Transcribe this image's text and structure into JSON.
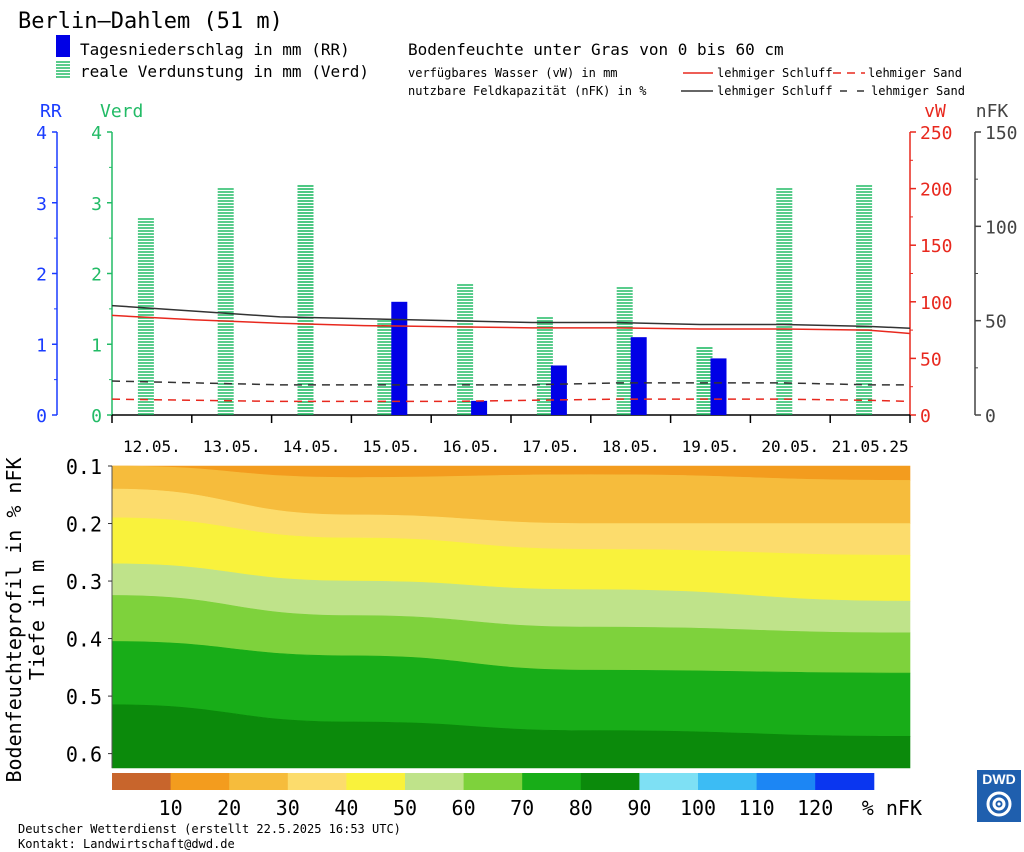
{
  "title": "Berlin—Dahlem (51 m)",
  "legend": {
    "rr": "Tagesniederschlag in mm (RR)",
    "verd": "reale Verdunstung in mm (Verd)",
    "soil_title": "Bodenfeuchte unter Gras von 0 bis 60 cm",
    "vw_label": "verfügbares Wasser (vW) in mm",
    "nfk_label": "nutzbare Feldkapazität (nFK) in %",
    "schluff_red": "lehmiger Schluff",
    "sand_red": "lehmiger Sand",
    "schluff_black": "lehmiger Schluff",
    "sand_black": "lehmiger Sand"
  },
  "colors": {
    "rr": "#0000e6",
    "verd": "#22bb66",
    "vw": "#e8281e",
    "nfk": "#333333",
    "ticks_rr": "#1a3cff",
    "ticks_verd": "#22bb66"
  },
  "chart_data": [
    {
      "type": "bar",
      "categories": [
        "12.05.",
        "13.05.",
        "14.05.",
        "15.05.",
        "16.05.",
        "17.05.",
        "18.05.",
        "19.05.",
        "20.05.",
        "21.05.25"
      ],
      "axes": {
        "rr": {
          "label": "RR",
          "ylim": [
            0,
            4
          ],
          "ticks": [
            0,
            1,
            2,
            3,
            4
          ]
        },
        "verd": {
          "label": "Verd",
          "ylim": [
            0,
            4
          ],
          "ticks": [
            0,
            1,
            2,
            3,
            4
          ]
        },
        "vw": {
          "label": "vW",
          "ylim": [
            0,
            250
          ],
          "ticks": [
            0,
            50,
            100,
            150,
            200,
            250
          ]
        },
        "nfk": {
          "label": "nFK",
          "ylim": [
            0,
            150
          ],
          "ticks": [
            0,
            50,
            100,
            150
          ]
        }
      },
      "series": [
        {
          "name": "Tagesniederschlag in mm (RR)",
          "axis": "rr",
          "kind": "bar",
          "values": [
            0,
            0,
            0,
            1.6,
            0.2,
            0.7,
            1.1,
            0.8,
            0,
            0
          ]
        },
        {
          "name": "reale Verdunstung in mm (Verd)",
          "axis": "verd",
          "kind": "bar",
          "values": [
            2.8,
            3.2,
            3.25,
            1.35,
            1.85,
            1.4,
            1.8,
            0.95,
            3.2,
            3.25
          ]
        },
        {
          "name": "verfügbares Wasser (vW) lehmiger Schluff",
          "axis": "vw",
          "kind": "line",
          "dash": false,
          "x": [
            0,
            1,
            2,
            3,
            4,
            5,
            6,
            7,
            8,
            9,
            9.5
          ],
          "values": [
            88,
            84,
            81,
            79,
            78,
            77,
            77,
            76,
            76,
            75,
            72
          ]
        },
        {
          "name": "verfügbares Wasser (vW) lehmiger Sand",
          "axis": "vw",
          "kind": "line",
          "dash": true,
          "x": [
            0,
            1,
            2,
            3,
            4,
            5,
            6,
            7,
            8,
            9,
            9.5
          ],
          "values": [
            14,
            13,
            12,
            12,
            12,
            13,
            14,
            14,
            14,
            13,
            12
          ]
        },
        {
          "name": "nutzbare Feldkapazität (nFK) lehmiger Schluff",
          "axis": "nfk",
          "kind": "line",
          "dash": false,
          "x": [
            0,
            1,
            2,
            3,
            4,
            5,
            6,
            7,
            8,
            9,
            9.5
          ],
          "values": [
            58,
            55,
            52,
            51,
            50,
            49,
            49,
            48,
            48,
            47,
            46
          ]
        },
        {
          "name": "nutzbare Feldkapazität (nFK) lehmiger Sand",
          "axis": "nfk",
          "kind": "line",
          "dash": true,
          "x": [
            0,
            1,
            2,
            3,
            4,
            5,
            6,
            7,
            8,
            9,
            9.5
          ],
          "values": [
            18,
            17,
            16,
            16,
            16,
            16,
            17,
            17,
            17,
            16,
            16
          ]
        }
      ]
    },
    {
      "type": "heatmap",
      "ylabel": "Bodenfeuchteprofil in % nFK\nTiefe in m",
      "yticks": [
        0.1,
        0.2,
        0.3,
        0.4,
        0.5,
        0.6
      ],
      "ylim": [
        0.1,
        0.625
      ],
      "xlim": [
        0,
        10
      ],
      "bands": [
        {
          "color": "#f39c1e",
          "x": [
            0,
            3,
            6,
            10
          ],
          "top": [
            0.1,
            0.1,
            0.1,
            0.1
          ],
          "bottom": [
            0.1,
            0.12,
            0.115,
            0.125
          ]
        },
        {
          "color": "#f6bc3c",
          "x": [
            0,
            3,
            6,
            10
          ],
          "top": [
            0.1,
            0.12,
            0.115,
            0.125
          ],
          "bottom": [
            0.14,
            0.185,
            0.2,
            0.2
          ]
        },
        {
          "color": "#fcdc6c",
          "x": [
            0,
            3,
            6,
            10
          ],
          "top": [
            0.14,
            0.185,
            0.2,
            0.2
          ],
          "bottom": [
            0.19,
            0.225,
            0.245,
            0.255
          ]
        },
        {
          "color": "#f9f23c",
          "x": [
            0,
            3,
            6,
            10
          ],
          "top": [
            0.19,
            0.225,
            0.245,
            0.255
          ],
          "bottom": [
            0.27,
            0.3,
            0.315,
            0.335
          ]
        },
        {
          "color": "#bfe38a",
          "x": [
            0,
            3,
            6,
            10
          ],
          "top": [
            0.27,
            0.3,
            0.315,
            0.335
          ],
          "bottom": [
            0.325,
            0.36,
            0.38,
            0.39
          ]
        },
        {
          "color": "#7ed23c",
          "x": [
            0,
            3,
            6,
            10
          ],
          "top": [
            0.325,
            0.36,
            0.38,
            0.39
          ],
          "bottom": [
            0.405,
            0.43,
            0.455,
            0.46
          ]
        },
        {
          "color": "#18ad18",
          "x": [
            0,
            3,
            6,
            10
          ],
          "top": [
            0.405,
            0.43,
            0.455,
            0.46
          ],
          "bottom": [
            0.515,
            0.545,
            0.56,
            0.57
          ]
        },
        {
          "color": "#0b8a0b",
          "x": [
            0,
            3,
            6,
            10
          ],
          "top": [
            0.515,
            0.545,
            0.56,
            0.57
          ],
          "bottom": [
            0.625,
            0.625,
            0.625,
            0.625
          ]
        }
      ],
      "colorbar": {
        "colors": [
          "#c8652c",
          "#f39c1e",
          "#f6bc3c",
          "#fcdc6c",
          "#f9f23c",
          "#bfe38a",
          "#7ed23c",
          "#18ad18",
          "#0b8a0b",
          "#7ee0f4",
          "#3cbcf4",
          "#1c86f4",
          "#0a36f0"
        ],
        "labels": [
          "10",
          "20",
          "30",
          "40",
          "50",
          "60",
          "70",
          "80",
          "90",
          "100",
          "110",
          "120"
        ],
        "unit": "% nFK"
      }
    }
  ],
  "footer": {
    "line1": "Deutscher Wetterdienst (erstellt 22.5.2025 16:53 UTC)",
    "line2": "Kontakt: Landwirtschaft@dwd.de"
  },
  "logo": {
    "text": "DWD"
  }
}
